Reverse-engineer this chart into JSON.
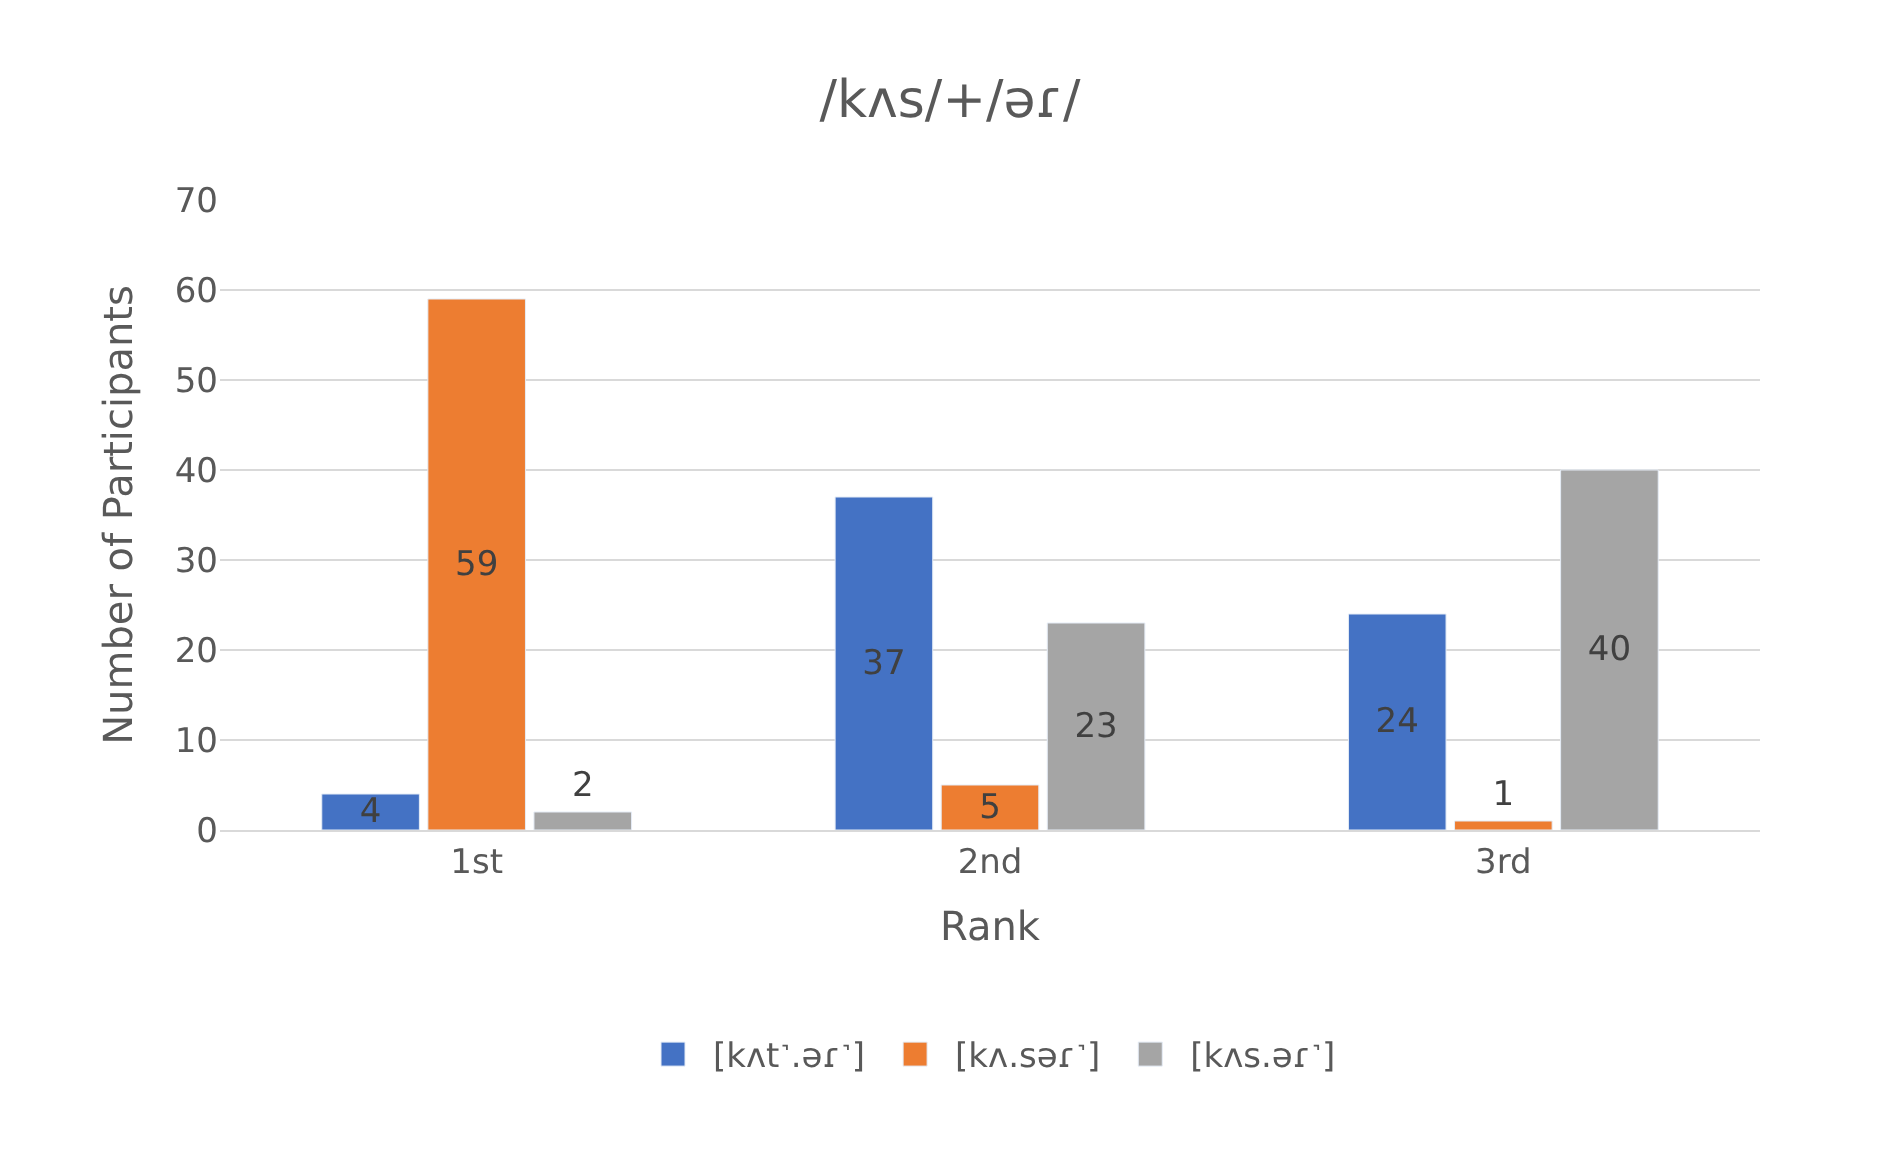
{
  "chart_data": {
    "type": "bar",
    "title": "/kʌs/+/əɾ/",
    "xlabel": "Rank",
    "ylabel": "Number of Participants",
    "categories": [
      "1st",
      "2nd",
      "3rd"
    ],
    "series": [
      {
        "name": "[kʌt˺.əɾ˺]",
        "color": "#4472c4",
        "values": [
          4,
          37,
          24
        ]
      },
      {
        "name": "[kʌ.səɾ˺]",
        "color": "#ed7d31",
        "values": [
          59,
          5,
          1
        ]
      },
      {
        "name": "[kʌs.əɾ˺]",
        "color": "#a5a5a5",
        "values": [
          2,
          23,
          40
        ]
      }
    ],
    "ylim": [
      0,
      70
    ],
    "yticks": [
      0,
      10,
      20,
      30,
      40,
      50,
      60,
      70
    ],
    "grid": "y",
    "legend": "bottom",
    "data_labels": true
  }
}
